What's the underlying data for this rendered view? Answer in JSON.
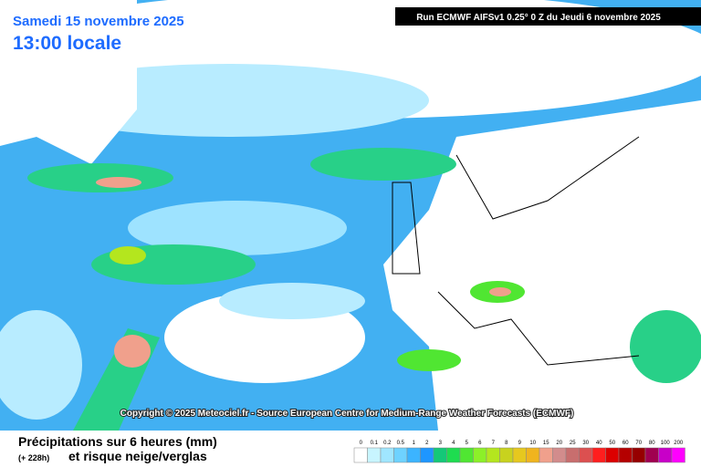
{
  "header": {
    "date": "Samedi 15 novembre 2025",
    "time": "13:00 locale",
    "run": "Run ECMWF AIFSv1 0.25° 0 Z du Jeudi 6 novembre 2025"
  },
  "copyright": "Copyright © 2025 Meteociel.fr - Source European Centre for Medium-Range Weather Forecasts (ECMWF)",
  "footer": {
    "title": "Précipitations sur 6 heures (mm)",
    "lead": "(+ 228h)",
    "subtitle": "et risque neige/verglas"
  },
  "legend": {
    "labels": [
      0,
      0.1,
      0.2,
      0.5,
      1,
      2,
      3,
      4,
      5,
      6,
      7,
      8,
      9,
      10,
      15,
      20,
      25,
      30,
      40,
      50,
      60,
      70,
      80,
      100,
      200
    ],
    "colors": [
      "#ffffff",
      "#c8f5ff",
      "#a0e6ff",
      "#6ed2ff",
      "#3cb4ff",
      "#1e96ff",
      "#14c878",
      "#1edc50",
      "#50e632",
      "#8cf028",
      "#b4e61e",
      "#c8d21e",
      "#e6c81e",
      "#f0b41e",
      "#f0a08c",
      "#d28c8c",
      "#c86e6e",
      "#dc5050",
      "#ff1e1e",
      "#dc0000",
      "#b40000",
      "#960000",
      "#a00050",
      "#c800c8",
      "#ff00ff"
    ]
  }
}
